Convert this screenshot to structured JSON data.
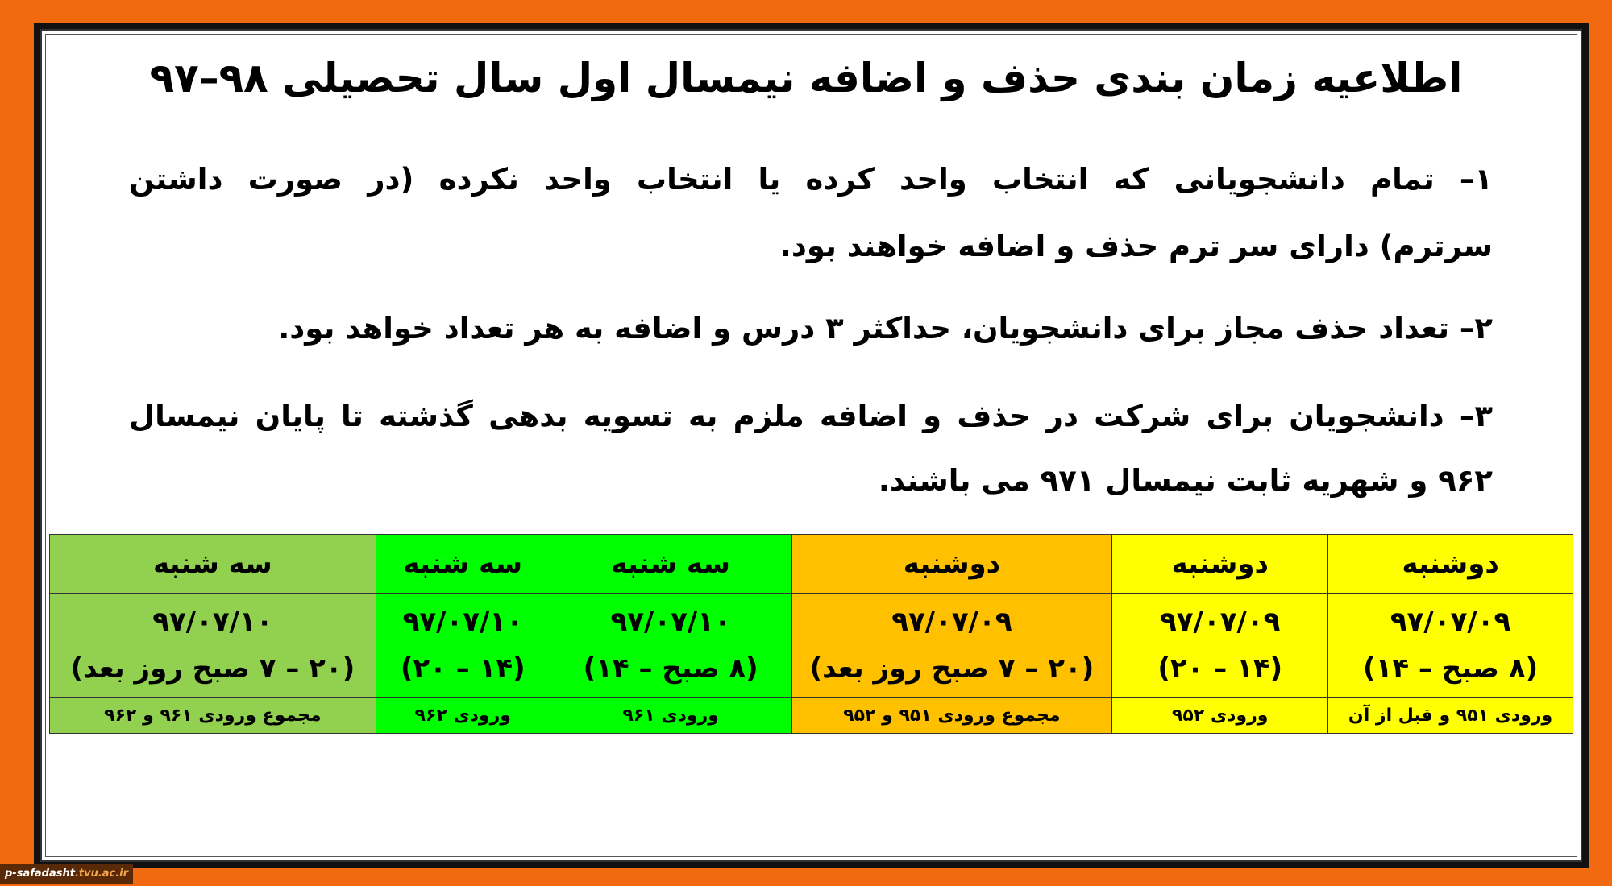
{
  "title": "اطلاعیه زمان بندی حذف و اضافه نیمسال اول سال تحصیلی ۹۸–۹۷",
  "paragraphs": [
    {
      "lines": [
        "۱– تمام دانشجویانی که انتخاب واحد کرده یا انتخاب واحد نکرده (در صورت داشتن",
        "سرترم) دارای سر ترم حذف و اضافه خواهند بود."
      ]
    },
    {
      "lines": [
        "۲– تعداد حذف مجاز برای دانشجویان، حداکثر ۳ درس و اضافه به هر تعداد خواهد بود."
      ]
    },
    {
      "lines": [
        "۳– دانشجویان برای شرکت در حذف و اضافه ملزم به تسویه بدهی گذشته تا پایان نیمسال",
        "۹۶۲ و شهریه ثابت نیمسال ۹۷۱ می باشند."
      ]
    }
  ],
  "schedule": [
    {
      "day": "دوشنبه",
      "date": "۹۷/۰۷/۰۹",
      "time": "(۸ صبح – ۱۴)",
      "group": "ورودی ۹۵۱ و قبل از آن",
      "color": "#ffff00"
    },
    {
      "day": "دوشنبه",
      "date": "۹۷/۰۷/۰۹",
      "time": "(۱۴ – ۲۰)",
      "group": "ورودی ۹۵۲",
      "color": "#ffff00"
    },
    {
      "day": "دوشنبه",
      "date": "۹۷/۰۷/۰۹",
      "time": "(۲۰ – ۷ صبح روز بعد)",
      "group": "مجموع ورودی ۹۵۱ و ۹۵۲",
      "color": "#ffc000"
    },
    {
      "day": "سه شنبه",
      "date": "۹۷/۰۷/۱۰",
      "time": "(۸ صبح – ۱۴)",
      "group": "ورودی ۹۶۱",
      "color": "#00ff00"
    },
    {
      "day": "سه شنبه",
      "date": "۹۷/۰۷/۱۰",
      "time": "(۱۴ – ۲۰)",
      "group": "ورودی ۹۶۲",
      "color": "#00ff00"
    },
    {
      "day": "سه شنبه",
      "date": "۹۷/۰۷/۱۰",
      "time": "(۲۰ – ۷ صبح روز بعد)",
      "group": "مجموع ورودی ۹۶۱ و ۹۶۲",
      "color": "#92d050"
    }
  ],
  "watermark": {
    "name": "p-safadasht",
    "domain": ".tvu.ac.ir"
  },
  "colors": {
    "background": "#f26a10",
    "frame": "#111111"
  }
}
